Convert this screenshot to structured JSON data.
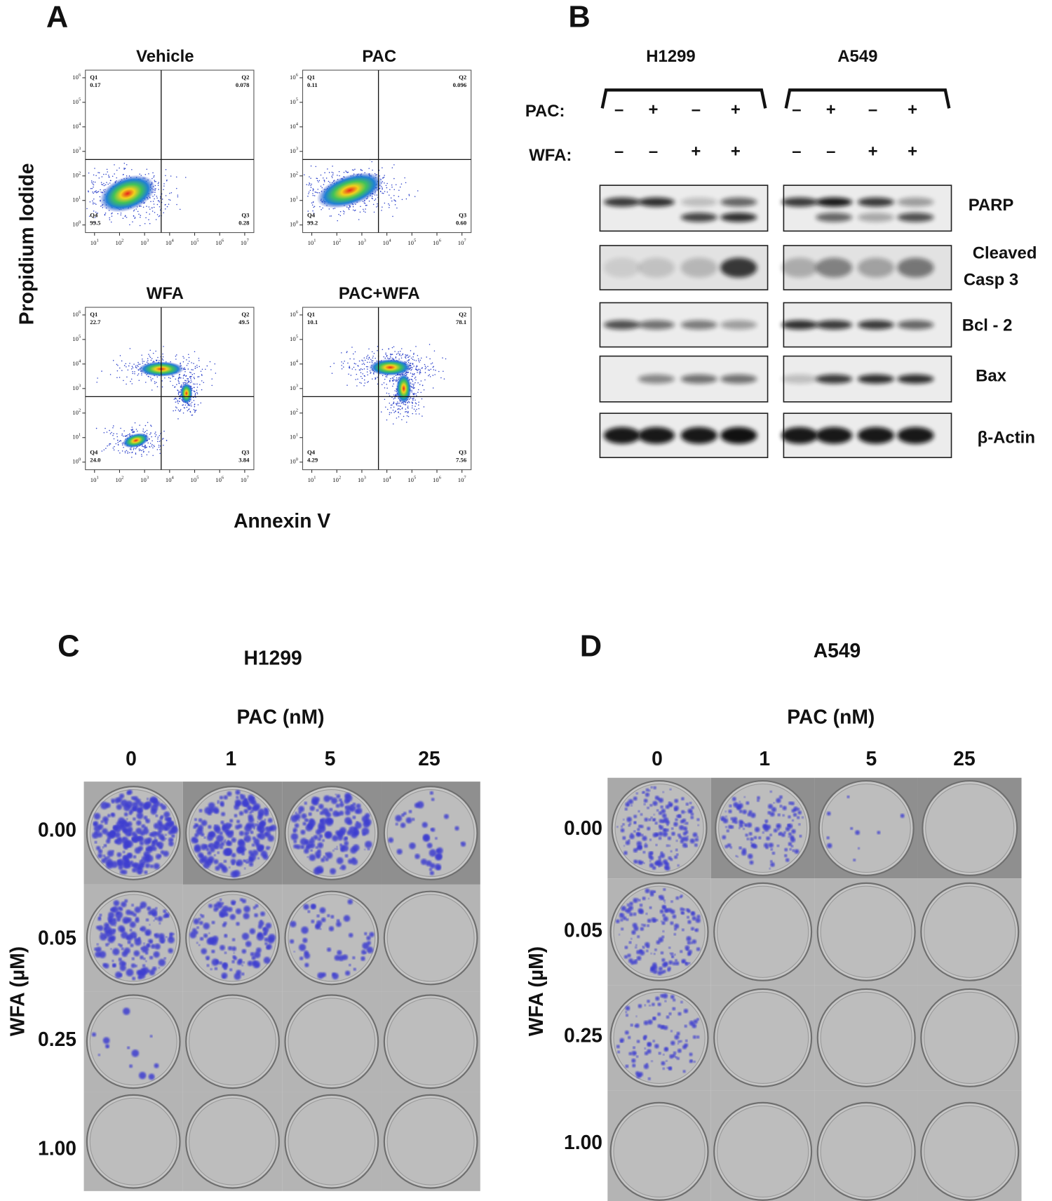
{
  "panel_a": {
    "label": "A",
    "y_axis_label": "Propidium Iodide",
    "x_axis_label": "Annexin V",
    "x_ticks": [
      {
        "base": "10",
        "exp": "1"
      },
      {
        "base": "10",
        "exp": "2"
      },
      {
        "base": "10",
        "exp": "3"
      },
      {
        "base": "10",
        "exp": "4"
      },
      {
        "base": "10",
        "exp": "5"
      },
      {
        "base": "10",
        "exp": "6"
      },
      {
        "base": "10",
        "exp": "7"
      }
    ],
    "y_ticks": [
      {
        "base": "10",
        "exp": "0"
      },
      {
        "base": "10",
        "exp": "1"
      },
      {
        "base": "10",
        "exp": "2"
      },
      {
        "base": "10",
        "exp": "3"
      },
      {
        "base": "10",
        "exp": "4"
      },
      {
        "base": "10",
        "exp": "5"
      },
      {
        "base": "10",
        "exp": "6"
      }
    ],
    "plots": [
      {
        "title": "Vehicle",
        "quadrants": [
          {
            "name": "Q1",
            "value": "0.17"
          },
          {
            "name": "Q2",
            "value": "0.078"
          },
          {
            "name": "Q3",
            "value": "0.28"
          },
          {
            "name": "Q4",
            "value": "99.5"
          }
        ]
      },
      {
        "title": "PAC",
        "quadrants": [
          {
            "name": "Q1",
            "value": "0.11"
          },
          {
            "name": "Q2",
            "value": "0.096"
          },
          {
            "name": "Q3",
            "value": "0.60"
          },
          {
            "name": "Q4",
            "value": "99.2"
          }
        ]
      },
      {
        "title": "WFA",
        "quadrants": [
          {
            "name": "Q1",
            "value": "22.7"
          },
          {
            "name": "Q2",
            "value": "49.5"
          },
          {
            "name": "Q3",
            "value": "3.84"
          },
          {
            "name": "Q4",
            "value": "24.0"
          }
        ]
      },
      {
        "title": "PAC+WFA",
        "quadrants": [
          {
            "name": "Q1",
            "value": "10.1"
          },
          {
            "name": "Q2",
            "value": "78.1"
          },
          {
            "name": "Q3",
            "value": "7.56"
          },
          {
            "name": "Q4",
            "value": "4.29"
          }
        ]
      }
    ]
  },
  "panel_b": {
    "label": "B",
    "cell_lines": [
      "H1299",
      "A549"
    ],
    "treatments": [
      {
        "name": "PAC:",
        "signs": [
          "–",
          "+",
          "–",
          "+"
        ]
      },
      {
        "name": "WFA:",
        "signs": [
          "–",
          "–",
          "+",
          "+"
        ]
      }
    ],
    "proteins": [
      [
        "PARP"
      ],
      [
        "Cleaved",
        "Casp 3"
      ],
      [
        "Bcl - 2"
      ],
      [
        "Bax"
      ],
      [
        "β-Actin"
      ]
    ]
  },
  "panel_c": {
    "label": "C",
    "cell_line": "H1299",
    "column_header": "PAC (nM)",
    "columns": [
      "0",
      "1",
      "5",
      "25"
    ],
    "row_header": "WFA (µM)",
    "rows": [
      "0.00",
      "0.05",
      "0.25",
      "1.00"
    ]
  },
  "panel_d": {
    "label": "D",
    "cell_line": "A549",
    "column_header": "PAC (nM)",
    "columns": [
      "0",
      "1",
      "5",
      "25"
    ],
    "row_header": "WFA (µM)",
    "rows": [
      "0.00",
      "0.05",
      "0.25",
      "1.00"
    ]
  }
}
